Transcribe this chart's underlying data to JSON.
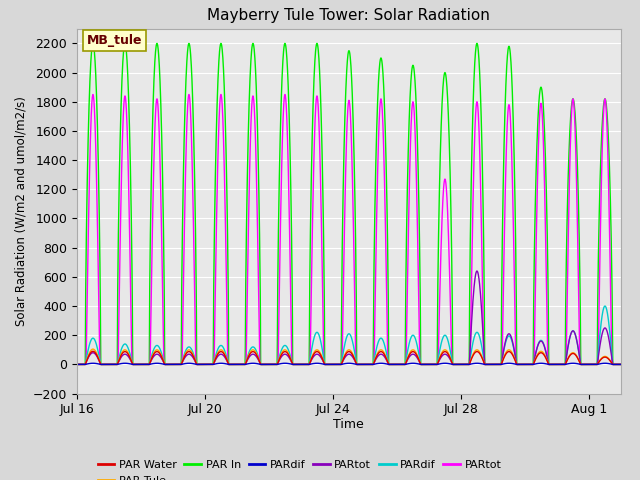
{
  "title": "Mayberry Tule Tower: Solar Radiation",
  "ylabel": "Solar Radiation (W/m2 and umol/m2/s)",
  "xlabel": "Time",
  "ylim": [
    -200,
    2300
  ],
  "yticks": [
    -200,
    0,
    200,
    400,
    600,
    800,
    1000,
    1200,
    1400,
    1600,
    1800,
    2000,
    2200
  ],
  "fig_bg": "#d8d8d8",
  "axes_bg": "#e8e8e8",
  "num_days": 17,
  "pts_per_day": 144,
  "xtick_labels": [
    "Jul 16",
    "Jul 20",
    "Jul 24",
    "Jul 28",
    "Aug 1"
  ],
  "xtick_positions": [
    0,
    4,
    8,
    12,
    16
  ],
  "annotation_text": "MB_tule",
  "series_colors": {
    "par_in": "#00ee00",
    "partot_mag": "#ff00ff",
    "pardif_cyan": "#00cccc",
    "partot_purple": "#8800bb",
    "par_tule": "#ffaa00",
    "par_water": "#dd0000",
    "pardif_blue": "#0000cc"
  },
  "par_in_peaks": [
    2200,
    2200,
    2200,
    2200,
    2200,
    2200,
    2200,
    2200,
    2150,
    2100,
    2050,
    2000,
    2200,
    2180,
    1900,
    1820,
    1820
  ],
  "partot_mag_peaks": [
    1850,
    1840,
    1820,
    1850,
    1850,
    1840,
    1850,
    1840,
    1810,
    1820,
    1800,
    1270,
    1800,
    1780,
    1790,
    1820,
    1820
  ],
  "pardif_cyan_peaks": [
    180,
    140,
    130,
    120,
    130,
    120,
    130,
    220,
    210,
    180,
    200,
    200,
    220,
    195,
    165,
    230,
    400
  ],
  "partot_purple_peaks": [
    80,
    70,
    70,
    70,
    70,
    70,
    70,
    70,
    70,
    70,
    70,
    70,
    640,
    210,
    160,
    230,
    250
  ],
  "par_water_peaks": [
    90,
    88,
    88,
    88,
    88,
    88,
    88,
    88,
    88,
    88,
    88,
    88,
    88,
    88,
    80,
    75,
    50
  ],
  "par_tule_peaks": [
    105,
    100,
    100,
    100,
    100,
    100,
    100,
    100,
    100,
    100,
    100,
    100,
    100,
    100,
    90,
    80,
    55
  ],
  "sunup": 0.265,
  "sundown": 0.745,
  "mag_sunup": 0.29,
  "mag_sundown": 0.72,
  "legend_labels": [
    "PAR Water",
    "PAR Tule",
    "PAR In",
    "PARdif",
    "PARtot",
    "PARdif",
    "PARtot"
  ],
  "legend_colors": [
    "#dd0000",
    "#ffaa00",
    "#00ee00",
    "#0000cc",
    "#8800bb",
    "#00cccc",
    "#ff00ff"
  ]
}
